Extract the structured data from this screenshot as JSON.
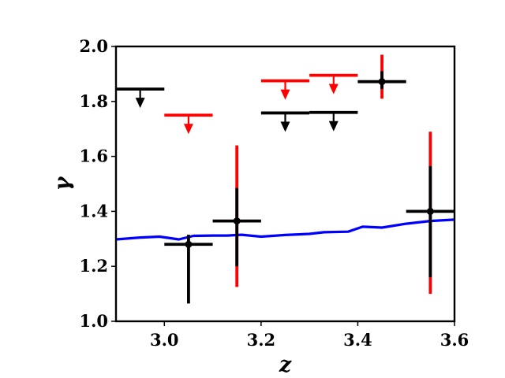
{
  "chart_data": {
    "type": "scatter",
    "title": "",
    "xlabel": "z",
    "ylabel": "γ",
    "xlim": [
      2.9,
      3.6
    ],
    "ylim": [
      1.0,
      2.0
    ],
    "xticks": [
      "3.0",
      "3.2",
      "3.4",
      "3.6"
    ],
    "yticks": [
      "1.0",
      "1.2",
      "1.4",
      "1.6",
      "1.8",
      "2.0"
    ],
    "grid": false,
    "legend": "none",
    "colors": {
      "black": "#000000",
      "red": "#ff0000",
      "blue": "#0000ff"
    },
    "series": [
      {
        "kind": "line",
        "color": "#0000ff",
        "points": [
          [
            2.9,
            1.298
          ],
          [
            2.95,
            1.305
          ],
          [
            2.99,
            1.308
          ],
          [
            3.03,
            1.298
          ],
          [
            3.06,
            1.311
          ],
          [
            3.1,
            1.312
          ],
          [
            3.13,
            1.312
          ],
          [
            3.16,
            1.315
          ],
          [
            3.2,
            1.308
          ],
          [
            3.25,
            1.314
          ],
          [
            3.3,
            1.318
          ],
          [
            3.33,
            1.324
          ],
          [
            3.38,
            1.326
          ],
          [
            3.41,
            1.344
          ],
          [
            3.45,
            1.341
          ],
          [
            3.5,
            1.355
          ],
          [
            3.55,
            1.365
          ],
          [
            3.6,
            1.37
          ]
        ]
      },
      {
        "kind": "measurements",
        "points": [
          {
            "x": 3.05,
            "y": 1.28,
            "xerr": 0.05,
            "y_lo_black": 1.065,
            "y_hi_black": 1.315,
            "y_lo_red": null,
            "y_hi_red": null
          },
          {
            "x": 3.15,
            "y": 1.365,
            "xerr": 0.05,
            "y_lo_black": 1.2,
            "y_hi_black": 1.485,
            "y_lo_red": 1.125,
            "y_hi_red": 1.64
          },
          {
            "x": 3.45,
            "y": 1.872,
            "xerr": 0.05,
            "y_lo_black": 1.845,
            "y_hi_black": 1.91,
            "y_lo_red": 1.81,
            "y_hi_red": 1.97
          },
          {
            "x": 3.55,
            "y": 1.4,
            "xerr": 0.05,
            "y_lo_black": 1.16,
            "y_hi_black": 1.565,
            "y_lo_red": 1.1,
            "y_hi_red": 1.69
          }
        ]
      },
      {
        "kind": "upper_limits",
        "points": [
          {
            "x": 2.95,
            "y": 1.845,
            "xerr": 0.05,
            "color": "#000000"
          },
          {
            "x": 3.05,
            "y": 1.75,
            "xerr": 0.05,
            "color": "#ff0000"
          },
          {
            "x": 3.25,
            "y": 1.875,
            "xerr": 0.05,
            "color": "#ff0000"
          },
          {
            "x": 3.25,
            "y": 1.758,
            "xerr": 0.05,
            "color": "#000000"
          },
          {
            "x": 3.35,
            "y": 1.895,
            "xerr": 0.05,
            "color": "#ff0000"
          },
          {
            "x": 3.35,
            "y": 1.76,
            "xerr": 0.05,
            "color": "#000000"
          }
        ]
      }
    ]
  }
}
